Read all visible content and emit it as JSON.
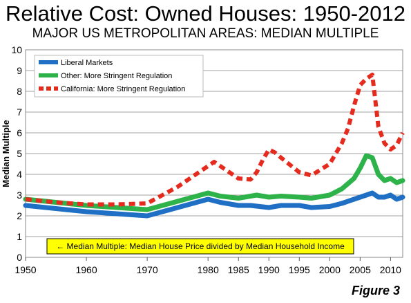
{
  "title": "Relative Cost: Owned Houses: 1950-2012",
  "subtitle": "MAJOR US METROPOLITAN AREAS: MEDIAN MULTIPLE",
  "figure_label": "Figure 3",
  "chart_data": {
    "type": "line",
    "ylabel": "Median Multiple",
    "xlabel": "",
    "xlim": [
      1950,
      2012
    ],
    "ylim": [
      0,
      10
    ],
    "x_ticks": [
      "1950",
      "1960",
      "1970",
      "1980",
      "1985",
      "1990",
      "1995",
      "2000",
      "2005",
      "2010"
    ],
    "y_ticks": [
      "0",
      "1",
      "2",
      "3",
      "4",
      "5",
      "6",
      "7",
      "8",
      "9",
      "10"
    ],
    "grid": "horizontal",
    "legend_position": "top-left",
    "annotation": "← Median Multiple: Median House Price divided by Median Household Income",
    "series": [
      {
        "name": "Liberal Markets",
        "color": "#1f6fc5",
        "style": "solid",
        "x": [
          1950,
          1955,
          1960,
          1965,
          1970,
          1975,
          1980,
          1982,
          1985,
          1987,
          1990,
          1992,
          1995,
          1997,
          2000,
          2002,
          2004,
          2005,
          2006,
          2007,
          2008,
          2009,
          2010,
          2011,
          2012
        ],
        "values": [
          2.5,
          2.35,
          2.2,
          2.1,
          2.0,
          2.4,
          2.8,
          2.65,
          2.5,
          2.5,
          2.4,
          2.5,
          2.5,
          2.4,
          2.45,
          2.6,
          2.8,
          2.9,
          3.0,
          3.1,
          2.9,
          2.9,
          3.0,
          2.8,
          2.9
        ]
      },
      {
        "name": "Other: More Stringent Regulation",
        "color": "#2db34a",
        "style": "solid",
        "x": [
          1950,
          1955,
          1960,
          1965,
          1970,
          1975,
          1980,
          1982,
          1985,
          1988,
          1990,
          1992,
          1995,
          1997,
          2000,
          2002,
          2004,
          2005,
          2006,
          2007,
          2008,
          2009,
          2010,
          2011,
          2012
        ],
        "values": [
          2.8,
          2.65,
          2.5,
          2.4,
          2.3,
          2.7,
          3.1,
          2.95,
          2.85,
          3.0,
          2.9,
          2.95,
          2.9,
          2.85,
          3.0,
          3.3,
          3.8,
          4.3,
          4.9,
          4.8,
          4.0,
          3.7,
          3.8,
          3.6,
          3.7
        ]
      },
      {
        "name": "California: More Stringent Regulation",
        "color": "#e52b1e",
        "style": "dashed",
        "x": [
          1950,
          1955,
          1960,
          1965,
          1970,
          1975,
          1979,
          1981,
          1983,
          1985,
          1987,
          1988,
          1989,
          1990,
          1991,
          1992,
          1995,
          1997,
          2000,
          2002,
          2003,
          2004,
          2005,
          2006,
          2007,
          2008,
          2009,
          2010,
          2011,
          2012
        ],
        "values": [
          2.8,
          2.65,
          2.55,
          2.55,
          2.6,
          3.4,
          4.2,
          4.6,
          4.2,
          3.8,
          3.75,
          4.1,
          4.7,
          5.2,
          5.05,
          4.8,
          4.1,
          3.95,
          4.5,
          5.5,
          6.2,
          7.3,
          8.3,
          8.6,
          8.8,
          6.3,
          5.5,
          5.2,
          5.4,
          6.0
        ]
      }
    ]
  }
}
